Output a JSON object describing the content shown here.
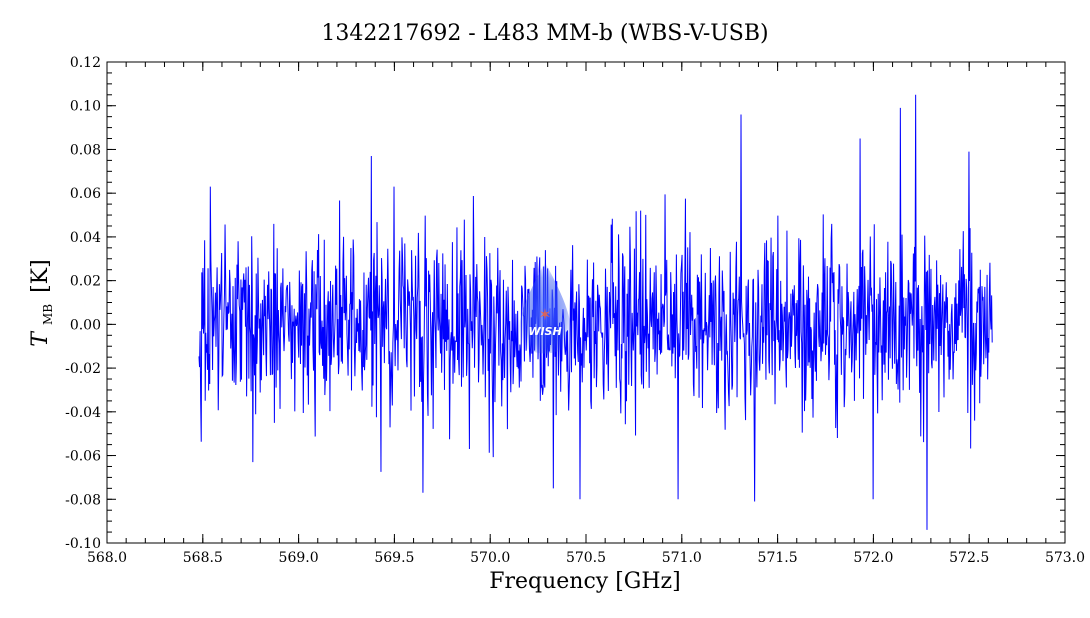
{
  "chart_data": {
    "type": "line",
    "title": "1342217692 - L483 MM-b (WBS-V-USB)",
    "xlabel": "Frequency [GHz]",
    "ylabel_main": "T",
    "ylabel_sub": "MB",
    "ylabel_unit": "[K]",
    "xlim": [
      568.0,
      573.0
    ],
    "ylim": [
      -0.1,
      0.12
    ],
    "x_ticks": [
      "568.0",
      "568.5",
      "569.0",
      "569.5",
      "570.0",
      "570.5",
      "571.0",
      "571.5",
      "572.0",
      "572.5",
      "573.0"
    ],
    "y_ticks": [
      "-0.10",
      "-0.08",
      "-0.06",
      "-0.04",
      "-0.02",
      "0.00",
      "0.02",
      "0.04",
      "0.06",
      "0.08",
      "0.10",
      "0.12"
    ],
    "grid": false,
    "series": [
      {
        "color": "#0000ff",
        "x_range": [
          568.48,
          572.62
        ],
        "noise_rms": 0.02,
        "y_min": -0.094,
        "y_max": 0.105,
        "n_points": 1400,
        "peaks": [
          {
            "x": 568.54,
            "y": 0.063
          },
          {
            "x": 569.38,
            "y": 0.077
          },
          {
            "x": 571.31,
            "y": 0.096
          },
          {
            "x": 571.93,
            "y": 0.085
          },
          {
            "x": 572.14,
            "y": 0.099
          },
          {
            "x": 572.22,
            "y": 0.105
          },
          {
            "x": 572.5,
            "y": 0.079
          }
        ],
        "troughs": [
          {
            "x": 568.76,
            "y": -0.063
          },
          {
            "x": 569.65,
            "y": -0.077
          },
          {
            "x": 570.33,
            "y": -0.075
          },
          {
            "x": 570.47,
            "y": -0.08
          },
          {
            "x": 570.98,
            "y": -0.08
          },
          {
            "x": 571.38,
            "y": -0.081
          },
          {
            "x": 572.0,
            "y": -0.08
          },
          {
            "x": 572.28,
            "y": -0.094
          }
        ]
      }
    ],
    "watermark": "WISH"
  }
}
